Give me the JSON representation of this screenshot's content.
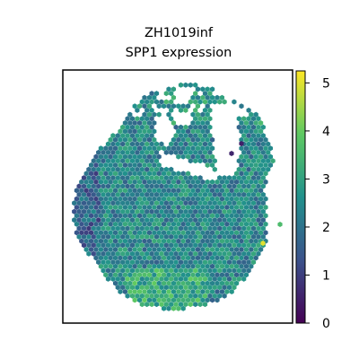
{
  "chart_data": {
    "type": "scatter",
    "title_line1": "ZH1019inf",
    "title_line2": "SPP1 expression",
    "xlabel": "",
    "ylabel": "",
    "colormap": "viridis",
    "colorbar": {
      "min": 0,
      "max": 5.25,
      "ticks": [
        "0",
        "1",
        "2",
        "3",
        "4",
        "5"
      ]
    },
    "grid": false,
    "spot_marker": "hexagon",
    "summary": {
      "typical_expression_range": [
        1.5,
        3.5
      ],
      "low_expression_region": "left edge",
      "high_expression_region": "bottom-center"
    },
    "colors": {
      "c0": "#440154",
      "c1": "#3b528b",
      "c2": "#21918c",
      "c3": "#5ec962",
      "c4": "#fde725"
    }
  }
}
